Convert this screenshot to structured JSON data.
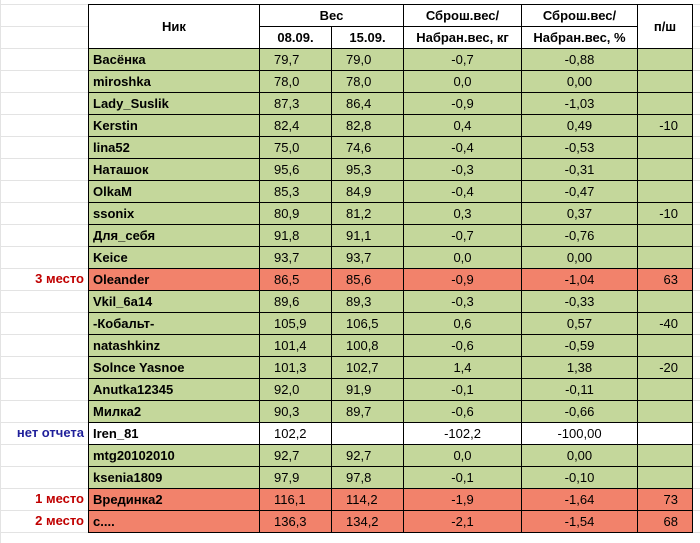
{
  "header": {
    "nick": "Ник",
    "weight": "Вес",
    "date1": "08.09.",
    "date2": "15.09.",
    "diff_kg_l1": "Сброш.вес/",
    "diff_kg_l2": "Набран.вес, кг",
    "diff_pct_l1": "Сброш.вес/",
    "diff_pct_l2": "Набран.вес, %",
    "ps": "п/ш"
  },
  "rows": [
    {
      "label": "",
      "nick": "Васёнка",
      "w1": "79,7",
      "w2": "79,0",
      "dkg": "-0,7",
      "dpct": "-0,88",
      "ps": "",
      "style": "green"
    },
    {
      "label": "",
      "nick": "miroshka",
      "w1": "78,0",
      "w2": "78,0",
      "dkg": "0,0",
      "dpct": "0,00",
      "ps": "",
      "style": "green"
    },
    {
      "label": "",
      "nick": "Lady_Suslik",
      "w1": "87,3",
      "w2": "86,4",
      "dkg": "-0,9",
      "dpct": "-1,03",
      "ps": "",
      "style": "green"
    },
    {
      "label": "",
      "nick": "Kerstin",
      "w1": "82,4",
      "w2": "82,8",
      "dkg": "0,4",
      "dpct": "0,49",
      "ps": "-10",
      "style": "green"
    },
    {
      "label": "",
      "nick": "lina52",
      "w1": "75,0",
      "w2": "74,6",
      "dkg": "-0,4",
      "dpct": "-0,53",
      "ps": "",
      "style": "green"
    },
    {
      "label": "",
      "nick": "Наташок",
      "w1": "95,6",
      "w2": "95,3",
      "dkg": "-0,3",
      "dpct": "-0,31",
      "ps": "",
      "style": "green"
    },
    {
      "label": "",
      "nick": "OlkaM",
      "w1": "85,3",
      "w2": "84,9",
      "dkg": "-0,4",
      "dpct": "-0,47",
      "ps": "",
      "style": "green"
    },
    {
      "label": "",
      "nick": "ssonix",
      "w1": "80,9",
      "w2": "81,2",
      "dkg": "0,3",
      "dpct": "0,37",
      "ps": "-10",
      "style": "green"
    },
    {
      "label": "",
      "nick": "Для_себя",
      "w1": "91,8",
      "w2": "91,1",
      "dkg": "-0,7",
      "dpct": "-0,76",
      "ps": "",
      "style": "green"
    },
    {
      "label": "",
      "nick": "Keice",
      "w1": "93,7",
      "w2": "93,7",
      "dkg": "0,0",
      "dpct": "0,00",
      "ps": "",
      "style": "green"
    },
    {
      "label": "3 место",
      "nick": "Oleander",
      "w1": "86,5",
      "w2": "85,6",
      "dkg": "-0,9",
      "dpct": "-1,04",
      "ps": "63",
      "style": "red"
    },
    {
      "label": "",
      "nick": "Vkil_6a14",
      "w1": "89,6",
      "w2": "89,3",
      "dkg": "-0,3",
      "dpct": "-0,33",
      "ps": "",
      "style": "green"
    },
    {
      "label": "",
      "nick": "-Кобальт-",
      "w1": "105,9",
      "w2": "106,5",
      "dkg": "0,6",
      "dpct": "0,57",
      "ps": "-40",
      "style": "green"
    },
    {
      "label": "",
      "nick": "natashkinz",
      "w1": "101,4",
      "w2": "100,8",
      "dkg": "-0,6",
      "dpct": "-0,59",
      "ps": "",
      "style": "green"
    },
    {
      "label": "",
      "nick": "Solnce Yasnoe",
      "w1": "101,3",
      "w2": "102,7",
      "dkg": "1,4",
      "dpct": "1,38",
      "ps": "-20",
      "style": "green"
    },
    {
      "label": "",
      "nick": "Anutka12345",
      "w1": "92,0",
      "w2": "91,9",
      "dkg": "-0,1",
      "dpct": "-0,11",
      "ps": "",
      "style": "green"
    },
    {
      "label": "",
      "nick": "Милка2",
      "w1": "90,3",
      "w2": "89,7",
      "dkg": "-0,6",
      "dpct": "-0,66",
      "ps": "",
      "style": "green"
    },
    {
      "label": "нет отчета",
      "nick": "Iren_81",
      "w1": "102,2",
      "w2": "",
      "dkg": "-102,2",
      "dpct": "-100,00",
      "ps": "",
      "style": "white"
    },
    {
      "label": "",
      "nick": "mtg20102010",
      "w1": "92,7",
      "w2": "92,7",
      "dkg": "0,0",
      "dpct": "0,00",
      "ps": "",
      "style": "green"
    },
    {
      "label": "",
      "nick": "ksenia1809",
      "w1": "97,9",
      "w2": "97,8",
      "dkg": "-0,1",
      "dpct": "-0,10",
      "ps": "",
      "style": "green"
    },
    {
      "label": "1 место",
      "nick": "Врединка2",
      "w1": "116,1",
      "w2": "114,2",
      "dkg": "-1,9",
      "dpct": "-1,64",
      "ps": "73",
      "style": "red"
    },
    {
      "label": "2 место",
      "nick": "с....",
      "w1": "136,3",
      "w2": "134,2",
      "dkg": "-2,1",
      "dpct": "-1,54",
      "ps": "68",
      "style": "red"
    }
  ],
  "colors": {
    "green": "#c4d79b",
    "red": "#f2826b",
    "place_label": "#c00000",
    "no_report_label": "#1f1f9a"
  }
}
